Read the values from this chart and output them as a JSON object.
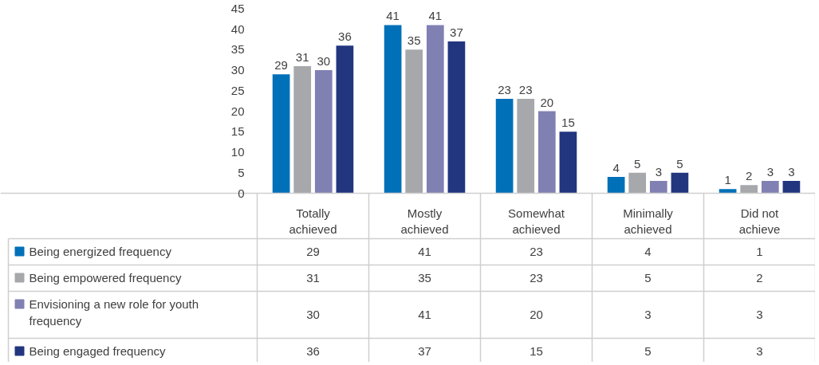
{
  "chart_data": {
    "type": "bar",
    "categories": [
      "Totally achieved",
      "Mostly achieved",
      "Somewhat achieved",
      "Minimally achieved",
      "Did not achieve"
    ],
    "series": [
      {
        "name": "Being energized frequency",
        "color": "#0070b8",
        "values": [
          29,
          41,
          23,
          4,
          1
        ],
        "value_labels": [
          "29",
          "41",
          "23",
          "4",
          "1"
        ]
      },
      {
        "name": "Being empowered frequency",
        "color": "#a6a8ab",
        "values": [
          31,
          35,
          23,
          5,
          2
        ],
        "value_labels": [
          "31",
          "35",
          "23",
          "5",
          "2"
        ]
      },
      {
        "name": "Envisioning a new role for youth frequency",
        "color": "#8080b3",
        "values": [
          30,
          41,
          20,
          3,
          3
        ],
        "value_labels": [
          "30",
          "41",
          "20",
          "3",
          "3"
        ]
      },
      {
        "name": "Being engaged frequency",
        "color": "#22367f",
        "values": [
          36,
          37,
          15,
          5,
          3
        ],
        "value_labels": [
          "36",
          "37",
          "15",
          "5",
          "3"
        ]
      }
    ],
    "ylim": [
      0,
      47
    ],
    "yticks": [
      0,
      5,
      10,
      15,
      20,
      25,
      30,
      35,
      40,
      45
    ],
    "data_labels": true,
    "legend": "bottom"
  }
}
